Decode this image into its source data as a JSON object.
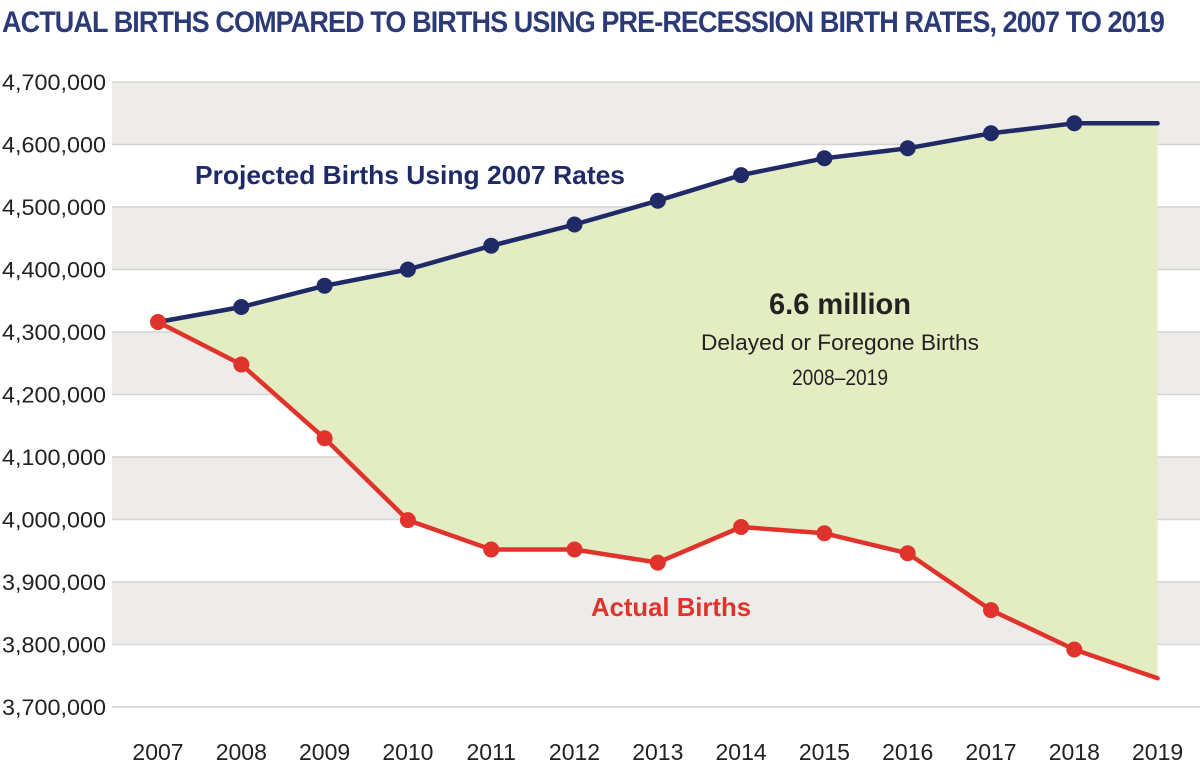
{
  "colors": {
    "title": "#2d3a78",
    "projected": "#1f2a66",
    "actual": "#e0332c",
    "gap_fill": "#e4edc2",
    "band_shade": "#eeecea",
    "grid": "#d6d3d0",
    "text": "#222222"
  },
  "chart_data": {
    "type": "line",
    "title": "ACTUAL BIRTHS COMPARED TO BIRTHS USING PRE-RECESSION BIRTH RATES, 2007 TO 2019",
    "xlabel": "",
    "ylabel": "",
    "categories": [
      "2007",
      "2008",
      "2009",
      "2010",
      "2011",
      "2012",
      "2013",
      "2014",
      "2015",
      "2016",
      "2017",
      "2018",
      "2019"
    ],
    "ylim": [
      3700000,
      4700000
    ],
    "yticks": [
      3700000,
      3800000,
      3900000,
      4000000,
      4100000,
      4200000,
      4300000,
      4400000,
      4500000,
      4600000,
      4700000
    ],
    "ytick_labels": [
      "3,700,000",
      "3,800,000",
      "3,900,000",
      "4,000,000",
      "4,100,000",
      "4,200,000",
      "4,300,000",
      "4,400,000",
      "4,500,000",
      "4,600,000",
      "4,700,000"
    ],
    "grid": true,
    "legend": "none",
    "series": [
      {
        "name": "Projected Births Using 2007 Rates",
        "key": "projected",
        "values": [
          4316000,
          4340000,
          4374000,
          4400000,
          4438000,
          4472000,
          4510000,
          4551000,
          4578000,
          4594000,
          4618000,
          4634000,
          4634000
        ],
        "markers": [
          false,
          true,
          true,
          true,
          true,
          true,
          true,
          true,
          true,
          true,
          true,
          true,
          false
        ]
      },
      {
        "name": "Actual Births",
        "key": "actual",
        "values": [
          4316000,
          4248000,
          4130000,
          3999000,
          3952000,
          3952000,
          3931000,
          3988000,
          3978000,
          3946000,
          3855000,
          3792000,
          3746000
        ],
        "markers": [
          true,
          true,
          true,
          true,
          true,
          true,
          true,
          true,
          true,
          true,
          true,
          true,
          false
        ]
      }
    ],
    "annotations": {
      "headline": "6.6 million",
      "line1": "Delayed or Foregone Births",
      "line2": "2008–2019"
    }
  }
}
